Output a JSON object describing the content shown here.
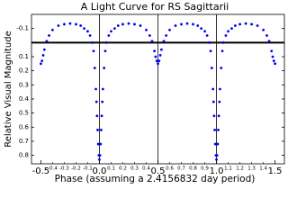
{
  "chart_data": {
    "type": "scatter",
    "title": "A Light Curve for RS Sagittarii",
    "x_label": "Phase (assuming a 2.4156832 day period)",
    "y_label": "Relative Visual Magnitude",
    "color": "#0000ee",
    "title_color": "#0000cc",
    "y_inverted": true,
    "xlim": [
      -0.58,
      1.58
    ],
    "ylim": [
      -0.2,
      0.86
    ],
    "xticks": [
      -0.5,
      {
        "value": 0,
        "label": "0.0"
      },
      0.5,
      {
        "value": 1,
        "label": "1.0"
      },
      1.5
    ],
    "xticks_minor": [
      -0.4,
      -0.3,
      -0.2,
      -0.1,
      0.1,
      0.2,
      0.3,
      0.4,
      0.6,
      0.7,
      0.8,
      0.9,
      1.1,
      1.2,
      1.3,
      1.4
    ],
    "yticks": [
      -0.1,
      0.1,
      0.2,
      0.3,
      0.4,
      0.5,
      0.6,
      0.7,
      0.8
    ],
    "vlines": [
      0,
      0.5,
      1
    ],
    "hlines": [
      0
    ],
    "x": [
      -0.5,
      -0.49,
      -0.48,
      -0.47,
      -0.45,
      -0.43,
      -0.4,
      -0.35,
      -0.3,
      -0.25,
      -0.2,
      -0.16,
      -0.13,
      -0.1,
      -0.08,
      -0.06,
      -0.05,
      -0.04,
      -0.03,
      -0.025,
      -0.02,
      -0.015,
      -0.01,
      -0.005,
      0,
      0.005,
      0.01,
      0.015,
      0.02,
      0.025,
      0.03,
      0.04,
      0.05,
      0.06,
      0.08,
      0.1,
      0.13,
      0.16,
      0.2,
      0.25,
      0.3,
      0.35,
      0.4,
      0.43,
      0.45,
      0.47,
      0.48,
      0.49,
      0.5,
      0.51,
      0.52,
      0.53,
      0.55,
      0.57,
      0.6,
      0.65,
      0.7,
      0.75,
      0.8,
      0.84,
      0.87,
      0.9,
      0.92,
      0.94,
      0.95,
      0.96,
      0.97,
      0.975,
      0.98,
      0.985,
      0.99,
      0.995,
      1,
      1.005,
      1.01,
      1.015,
      1.02,
      1.025,
      1.03,
      1.04,
      1.05,
      1.06,
      1.08,
      1.1,
      1.13,
      1.16,
      1.2,
      1.25,
      1.3,
      1.35,
      1.4,
      1.43,
      1.45,
      1.47,
      1.48,
      1.49,
      1.5
    ],
    "values": [
      0.15,
      0.13,
      0.09,
      0.05,
      -0.01,
      -0.05,
      -0.09,
      -0.12,
      -0.13,
      -0.135,
      -0.13,
      -0.12,
      -0.1,
      -0.08,
      -0.05,
      0,
      0.06,
      0.18,
      0.33,
      0.42,
      0.52,
      0.62,
      0.72,
      0.8,
      0.83,
      0.8,
      0.72,
      0.62,
      0.52,
      0.42,
      0.33,
      0.18,
      0.06,
      0,
      -0.05,
      -0.08,
      -0.1,
      -0.12,
      -0.13,
      -0.135,
      -0.13,
      -0.12,
      -0.09,
      -0.05,
      -0.01,
      0.06,
      0.1,
      0.13,
      0.15,
      0.13,
      0.09,
      0.05,
      -0.01,
      -0.05,
      -0.09,
      -0.12,
      -0.13,
      -0.135,
      -0.13,
      -0.12,
      -0.1,
      -0.08,
      -0.05,
      0,
      0.06,
      0.18,
      0.33,
      0.42,
      0.52,
      0.62,
      0.72,
      0.8,
      0.83,
      0.8,
      0.72,
      0.62,
      0.52,
      0.42,
      0.33,
      0.18,
      0.06,
      0,
      -0.05,
      -0.08,
      -0.1,
      -0.12,
      -0.13,
      -0.135,
      -0.13,
      -0.12,
      -0.09,
      -0.05,
      -0.01,
      0.06,
      0.1,
      0.13,
      0.15
    ]
  }
}
